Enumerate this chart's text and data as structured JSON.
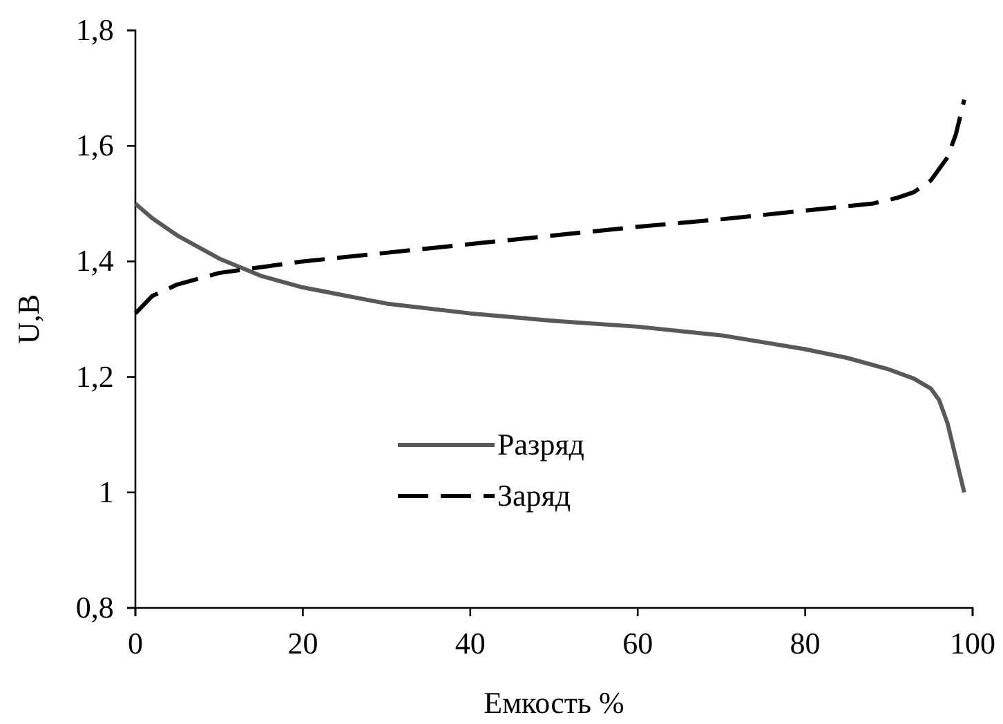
{
  "chart_data": {
    "type": "line",
    "xlabel": "Емкость %",
    "ylabel": "U,B",
    "xlim": [
      0,
      100
    ],
    "xticks": [
      0,
      20,
      40,
      60,
      80,
      100
    ],
    "ylim": [
      0.8,
      1.8
    ],
    "yticks": [
      {
        "value": 0.8,
        "label": "0,8"
      },
      {
        "value": 1,
        "label": "1"
      },
      {
        "value": 1.2,
        "label": "1,2"
      },
      {
        "value": 1.4,
        "label": "1,4"
      },
      {
        "value": 1.6,
        "label": "1,6"
      },
      {
        "value": 1.8,
        "label": "1,8"
      }
    ],
    "grid": false,
    "legend": "bottom left",
    "marker": "none",
    "series": [
      {
        "name": "Разряд",
        "color": "#595959",
        "line_style": "solid",
        "x": [
          0,
          2,
          5,
          10,
          15,
          20,
          30,
          40,
          50,
          60,
          70,
          80,
          85,
          90,
          93,
          95,
          96,
          97,
          98,
          99
        ],
        "values": [
          1.5,
          1.475,
          1.445,
          1.405,
          1.375,
          1.355,
          1.327,
          1.31,
          1.297,
          1.287,
          1.272,
          1.248,
          1.233,
          1.213,
          1.197,
          1.18,
          1.16,
          1.12,
          1.06,
          1.0
        ]
      },
      {
        "name": "Заряд",
        "color": "#000000",
        "line_style": "dashed",
        "x": [
          0,
          2,
          5,
          10,
          15,
          20,
          30,
          40,
          50,
          60,
          70,
          80,
          88,
          91,
          93,
          95,
          97,
          98,
          99
        ],
        "values": [
          1.31,
          1.34,
          1.36,
          1.38,
          1.39,
          1.4,
          1.415,
          1.43,
          1.445,
          1.46,
          1.473,
          1.488,
          1.5,
          1.51,
          1.52,
          1.54,
          1.58,
          1.62,
          1.68
        ]
      }
    ]
  }
}
